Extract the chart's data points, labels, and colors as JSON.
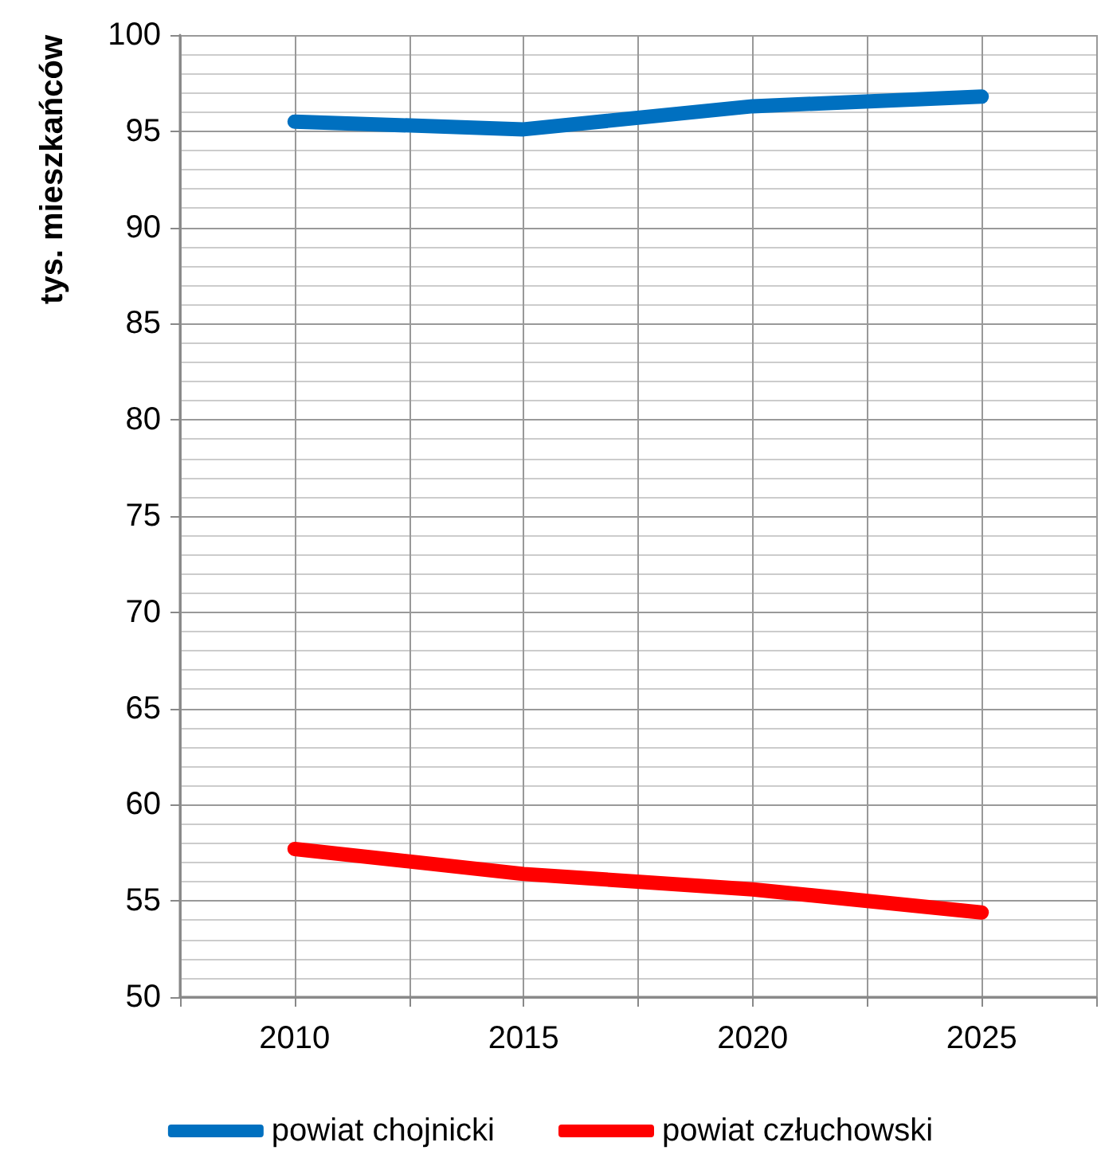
{
  "chart_data": {
    "type": "line",
    "ylabel": "tys. mieszkańców",
    "x": [
      2010,
      2015,
      2020,
      2025
    ],
    "series": [
      {
        "name": "powiat chojnicki",
        "color": "#0070c0",
        "values": [
          95.5,
          95.1,
          96.3,
          96.8
        ]
      },
      {
        "name": "powiat człuchowski",
        "color": "#ff0000",
        "values": [
          57.7,
          56.4,
          55.6,
          54.4
        ]
      }
    ],
    "xlim": [
      2007.5,
      2027.5
    ],
    "xticks": [
      {
        "value": 2007.5,
        "label": null
      },
      2010,
      {
        "value": 2012.5,
        "label": null
      },
      2015,
      {
        "value": 2017.5,
        "label": null
      },
      2020,
      {
        "value": 2022.5,
        "label": null
      },
      2025,
      {
        "value": 2027.5,
        "label": null
      }
    ],
    "ylim": [
      50,
      100
    ],
    "yticks": [
      50,
      55,
      60,
      65,
      70,
      75,
      80,
      85,
      90,
      95,
      100
    ],
    "grid": true,
    "legend": "bottom",
    "marker": "none",
    "line_style": "solid"
  }
}
